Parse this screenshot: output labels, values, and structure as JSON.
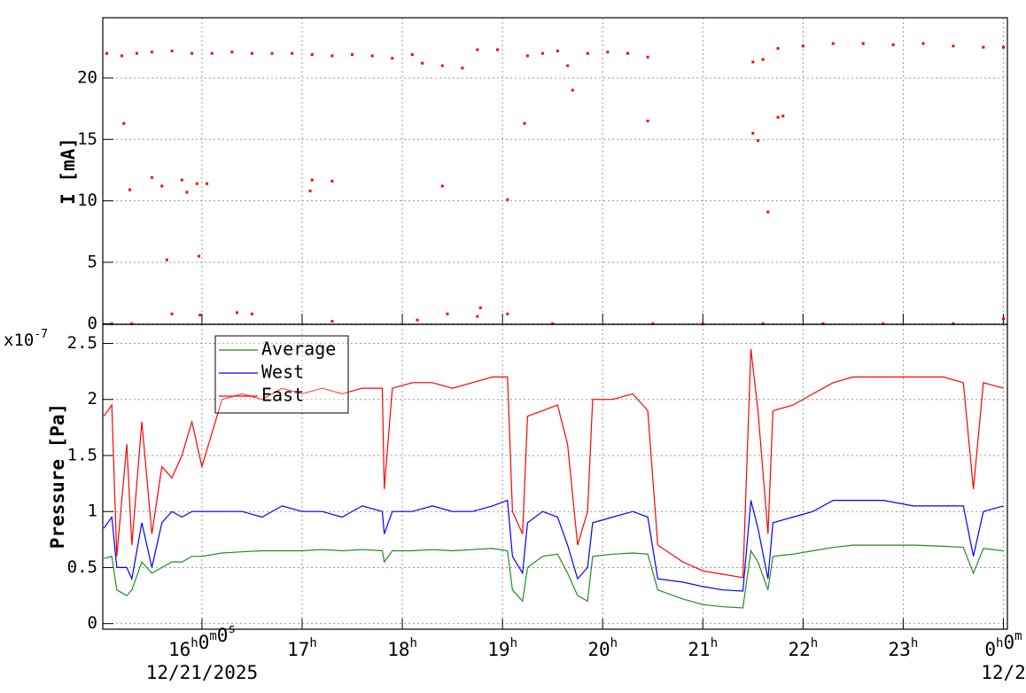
{
  "chart_data": [
    {
      "type": "scatter",
      "y_label": "I [mA]",
      "color": "#ff0000",
      "grid": true,
      "xlim": [
        15.01,
        24.04
      ],
      "xticks": [
        16,
        17,
        18,
        19,
        20,
        21,
        22,
        23,
        24
      ],
      "ylim": [
        -0.05,
        24.9
      ],
      "yticks": [
        0,
        5,
        10,
        15,
        20
      ],
      "x": [
        15.05,
        15.2,
        15.35,
        15.5,
        15.7,
        15.9,
        16.1,
        16.3,
        16.5,
        16.7,
        16.9,
        17.1,
        17.3,
        17.5,
        17.7,
        17.9,
        18.1,
        18.2,
        18.4,
        18.6,
        18.75,
        18.95,
        19.25,
        19.4,
        19.55,
        19.65,
        19.7,
        19.85,
        20.05,
        20.25,
        20.45,
        21.5,
        21.6,
        21.75,
        22.0,
        22.3,
        22.6,
        22.9,
        23.2,
        23.5,
        23.8,
        24.0,
        15.22,
        15.28,
        15.5,
        15.6,
        15.65,
        15.8,
        15.85,
        15.95,
        15.97,
        16.05,
        17.1,
        17.08,
        17.3,
        18.4,
        19.05,
        19.22,
        20.45,
        21.5,
        21.55,
        21.65,
        21.75,
        21.8,
        15.1,
        15.3,
        15.7,
        15.98,
        16.35,
        16.5,
        17.3,
        18.15,
        18.45,
        18.75,
        18.78,
        19.05,
        19.5,
        20.5,
        21.0,
        21.6,
        22.2,
        22.8,
        23.5,
        24.0
      ],
      "values": [
        22.0,
        21.8,
        22.0,
        22.1,
        22.2,
        22.0,
        22.0,
        22.1,
        22.0,
        22.0,
        22.0,
        21.9,
        21.8,
        21.9,
        21.8,
        21.6,
        21.9,
        21.2,
        21.0,
        20.8,
        22.3,
        22.3,
        21.8,
        22.0,
        22.2,
        21.0,
        19.0,
        22.0,
        22.1,
        22.0,
        21.7,
        21.3,
        21.5,
        22.4,
        22.6,
        22.8,
        22.8,
        22.7,
        22.8,
        22.6,
        22.5,
        22.5,
        16.3,
        10.9,
        11.9,
        11.2,
        5.2,
        11.7,
        10.7,
        11.4,
        5.5,
        11.4,
        11.7,
        10.8,
        11.6,
        11.2,
        10.1,
        16.3,
        16.5,
        15.5,
        14.9,
        9.1,
        16.8,
        16.9,
        0,
        0,
        0.8,
        0.7,
        0.9,
        0.8,
        0.2,
        0.3,
        0.8,
        0.6,
        1.3,
        0.8,
        0,
        0,
        0,
        0,
        0,
        0,
        0,
        0.4
      ]
    },
    {
      "type": "line",
      "y_label": "Pressure [Pa]",
      "axis_multiplier": {
        "base": "x10",
        "exponent": "-7"
      },
      "grid": true,
      "legend": "top-left",
      "xlim": [
        15.01,
        24.04
      ],
      "xticks": [
        {
          "value": 16,
          "label": "16h0m0s"
        },
        {
          "value": 17,
          "label": "17h"
        },
        {
          "value": 18,
          "label": "18h"
        },
        {
          "value": 19,
          "label": "19h"
        },
        {
          "value": 20,
          "label": "20h"
        },
        {
          "value": 21,
          "label": "21h"
        },
        {
          "value": 22,
          "label": "22h"
        },
        {
          "value": 23,
          "label": "23h"
        },
        {
          "value": 24,
          "label": "0h0m"
        }
      ],
      "x_date_labels": [
        {
          "value": 16,
          "label": "12/21/2025"
        },
        {
          "value": 24,
          "label": "12/2"
        }
      ],
      "ylim": [
        -0.05,
        2.67
      ],
      "yticks": [
        0,
        0.5,
        1,
        1.5,
        2,
        2.5
      ],
      "x": [
        15.02,
        15.1,
        15.15,
        15.25,
        15.3,
        15.4,
        15.5,
        15.6,
        15.7,
        15.8,
        15.9,
        16.0,
        16.2,
        16.4,
        16.6,
        16.8,
        17.0,
        17.2,
        17.4,
        17.6,
        17.8,
        17.82,
        17.9,
        18.1,
        18.3,
        18.5,
        18.7,
        18.9,
        19.05,
        19.1,
        19.2,
        19.25,
        19.4,
        19.55,
        19.65,
        19.75,
        19.85,
        19.9,
        20.1,
        20.3,
        20.45,
        20.55,
        20.8,
        21.0,
        21.2,
        21.4,
        21.48,
        21.55,
        21.65,
        21.7,
        21.9,
        22.1,
        22.3,
        22.5,
        22.8,
        23.1,
        23.4,
        23.6,
        23.7,
        23.8,
        24.0
      ],
      "series": [
        {
          "name": "Average",
          "color": "#228b22",
          "values": [
            0.58,
            0.6,
            0.3,
            0.25,
            0.3,
            0.55,
            0.45,
            0.5,
            0.55,
            0.55,
            0.6,
            0.6,
            0.63,
            0.64,
            0.65,
            0.65,
            0.65,
            0.66,
            0.65,
            0.66,
            0.65,
            0.55,
            0.65,
            0.65,
            0.66,
            0.65,
            0.66,
            0.67,
            0.65,
            0.3,
            0.2,
            0.5,
            0.6,
            0.62,
            0.45,
            0.25,
            0.2,
            0.6,
            0.62,
            0.63,
            0.62,
            0.3,
            0.22,
            0.17,
            0.15,
            0.14,
            0.65,
            0.55,
            0.3,
            0.6,
            0.62,
            0.65,
            0.68,
            0.7,
            0.7,
            0.7,
            0.69,
            0.68,
            0.45,
            0.67,
            0.65
          ]
        },
        {
          "name": "West",
          "color": "#0000ff",
          "values": [
            0.85,
            0.95,
            0.5,
            0.5,
            0.4,
            0.9,
            0.5,
            0.9,
            1.0,
            0.95,
            1.0,
            1.0,
            1.0,
            1.0,
            0.95,
            1.05,
            1.0,
            1.0,
            0.95,
            1.05,
            1.0,
            0.8,
            1.0,
            1.0,
            1.05,
            1.0,
            1.0,
            1.05,
            1.1,
            0.6,
            0.45,
            0.9,
            1.0,
            0.95,
            0.7,
            0.4,
            0.5,
            0.9,
            0.95,
            1.0,
            0.95,
            0.4,
            0.37,
            0.33,
            0.3,
            0.29,
            1.1,
            0.85,
            0.4,
            0.9,
            0.95,
            1.0,
            1.1,
            1.1,
            1.1,
            1.05,
            1.05,
            1.05,
            0.6,
            1.0,
            1.05
          ]
        },
        {
          "name": "East",
          "color": "#ff0000",
          "values": [
            1.85,
            1.95,
            0.6,
            1.6,
            0.7,
            1.8,
            0.8,
            1.4,
            1.3,
            1.5,
            1.8,
            1.4,
            2.0,
            2.05,
            2.0,
            2.1,
            2.05,
            2.1,
            2.05,
            2.1,
            2.1,
            1.2,
            2.1,
            2.15,
            2.15,
            2.1,
            2.15,
            2.2,
            2.2,
            1.0,
            0.8,
            1.85,
            1.9,
            1.95,
            1.6,
            0.7,
            1.0,
            2.0,
            2.0,
            2.05,
            1.9,
            0.7,
            0.55,
            0.47,
            0.44,
            0.41,
            2.45,
            1.9,
            0.8,
            1.9,
            1.95,
            2.05,
            2.15,
            2.2,
            2.2,
            2.2,
            2.2,
            2.15,
            1.2,
            2.15,
            2.1
          ]
        }
      ]
    }
  ]
}
